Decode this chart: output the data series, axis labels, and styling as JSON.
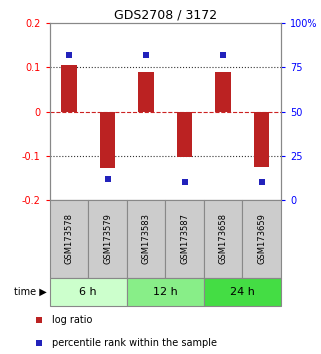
{
  "title": "GDS2708 / 3172",
  "samples": [
    "GSM173578",
    "GSM173579",
    "GSM173583",
    "GSM173587",
    "GSM173658",
    "GSM173659"
  ],
  "log_ratios": [
    0.104,
    -0.128,
    0.09,
    -0.103,
    0.09,
    -0.125
  ],
  "percentile_ranks": [
    82,
    12,
    82,
    10,
    82,
    10
  ],
  "ylim": [
    -0.2,
    0.2
  ],
  "yticks": [
    -0.2,
    -0.1,
    0.0,
    0.1,
    0.2
  ],
  "ytick_labels_left": [
    "-0.2",
    "-0.1",
    "0",
    "0.1",
    "0.2"
  ],
  "ytick_labels_right": [
    "0",
    "25",
    "50",
    "75",
    "100%"
  ],
  "bar_color": "#bb2222",
  "dot_color": "#2222bb",
  "hline_color_zero": "#cc2222",
  "hline_color_grid": "#333333",
  "time_groups": [
    {
      "label": "6 h",
      "color": "#ccffcc"
    },
    {
      "label": "12 h",
      "color": "#88ee88"
    },
    {
      "label": "24 h",
      "color": "#44dd44"
    }
  ],
  "sample_box_color": "#cccccc",
  "sample_box_edge": "#888888",
  "legend_bar_label": "log ratio",
  "legend_dot_label": "percentile rank within the sample",
  "bar_width": 0.4,
  "dot_size": 25
}
